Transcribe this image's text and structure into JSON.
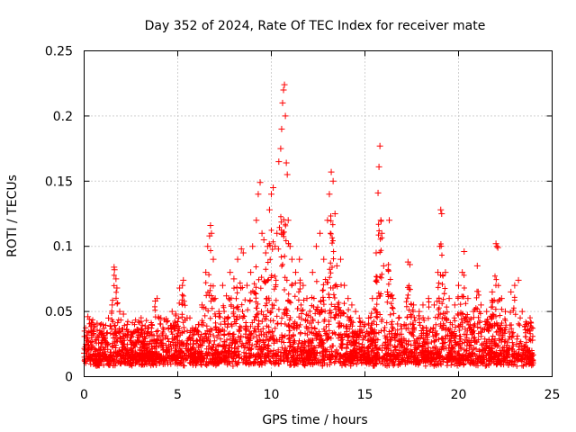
{
  "chart_data": {
    "type": "scatter",
    "title": "Day 352 of 2024, Rate Of TEC Index for receiver mate",
    "xlabel": "GPS time / hours",
    "ylabel": "ROTI / TECUs",
    "xlim": [
      0,
      25
    ],
    "ylim": [
      0,
      0.25
    ],
    "x_ticks": [
      "0",
      "5",
      "10",
      "15",
      "20",
      "25"
    ],
    "y_ticks": [
      "0",
      "0.05",
      "0.1",
      "0.15",
      "0.2",
      "0.25"
    ],
    "grid": true,
    "marker": "+",
    "color": "#ff0000",
    "series": [
      {
        "name": "ROTI",
        "points": [
          [
            0.0,
            0.018
          ],
          [
            0.2,
            0.046
          ],
          [
            0.4,
            0.035
          ],
          [
            0.6,
            0.028
          ],
          [
            0.8,
            0.032
          ],
          [
            1.0,
            0.03
          ],
          [
            1.3,
            0.045
          ],
          [
            1.5,
            0.055
          ],
          [
            1.6,
            0.084
          ],
          [
            1.62,
            0.082
          ],
          [
            1.7,
            0.075
          ],
          [
            1.75,
            0.068
          ],
          [
            1.9,
            0.05
          ],
          [
            2.1,
            0.048
          ],
          [
            2.3,
            0.04
          ],
          [
            2.5,
            0.03
          ],
          [
            2.8,
            0.025
          ],
          [
            3.0,
            0.022
          ],
          [
            3.3,
            0.024
          ],
          [
            3.6,
            0.04
          ],
          [
            3.8,
            0.058
          ],
          [
            3.9,
            0.06
          ],
          [
            4.1,
            0.045
          ],
          [
            4.4,
            0.042
          ],
          [
            4.7,
            0.05
          ],
          [
            4.9,
            0.048
          ],
          [
            5.1,
            0.068
          ],
          [
            5.25,
            0.07
          ],
          [
            5.3,
            0.074
          ],
          [
            5.5,
            0.045
          ],
          [
            5.8,
            0.032
          ],
          [
            6.1,
            0.04
          ],
          [
            6.3,
            0.055
          ],
          [
            6.5,
            0.08
          ],
          [
            6.6,
            0.1
          ],
          [
            6.7,
            0.108
          ],
          [
            6.75,
            0.116
          ],
          [
            6.8,
            0.11
          ],
          [
            6.9,
            0.09
          ],
          [
            7.0,
            0.06
          ],
          [
            7.2,
            0.05
          ],
          [
            7.4,
            0.07
          ],
          [
            7.6,
            0.062
          ],
          [
            7.8,
            0.08
          ],
          [
            8.0,
            0.075
          ],
          [
            8.2,
            0.09
          ],
          [
            8.4,
            0.098
          ],
          [
            8.5,
            0.095
          ],
          [
            8.7,
            0.07
          ],
          [
            8.9,
            0.08
          ],
          [
            9.0,
            0.1
          ],
          [
            9.2,
            0.12
          ],
          [
            9.3,
            0.14
          ],
          [
            9.4,
            0.149
          ],
          [
            9.5,
            0.11
          ],
          [
            9.6,
            0.105
          ],
          [
            9.7,
            0.095
          ],
          [
            9.8,
            0.1
          ],
          [
            9.9,
            0.128
          ],
          [
            10.0,
            0.14
          ],
          [
            10.1,
            0.145
          ],
          [
            10.2,
            0.1
          ],
          [
            10.3,
            0.11
          ],
          [
            10.4,
            0.165
          ],
          [
            10.5,
            0.175
          ],
          [
            10.55,
            0.19
          ],
          [
            10.6,
            0.21
          ],
          [
            10.65,
            0.22
          ],
          [
            10.7,
            0.224
          ],
          [
            10.75,
            0.2
          ],
          [
            10.8,
            0.164
          ],
          [
            10.85,
            0.155
          ],
          [
            10.9,
            0.12
          ],
          [
            11.0,
            0.1
          ],
          [
            11.1,
            0.09
          ],
          [
            11.3,
            0.08
          ],
          [
            11.5,
            0.09
          ],
          [
            11.7,
            0.07
          ],
          [
            11.9,
            0.06
          ],
          [
            12.2,
            0.08
          ],
          [
            12.4,
            0.1
          ],
          [
            12.6,
            0.11
          ],
          [
            12.8,
            0.09
          ],
          [
            13.0,
            0.12
          ],
          [
            13.1,
            0.14
          ],
          [
            13.2,
            0.157
          ],
          [
            13.3,
            0.15
          ],
          [
            13.4,
            0.125
          ],
          [
            13.5,
            0.085
          ],
          [
            13.7,
            0.09
          ],
          [
            13.9,
            0.07
          ],
          [
            14.1,
            0.06
          ],
          [
            14.3,
            0.055
          ],
          [
            14.5,
            0.05
          ],
          [
            14.7,
            0.045
          ],
          [
            15.0,
            0.04
          ],
          [
            15.2,
            0.045
          ],
          [
            15.4,
            0.06
          ],
          [
            15.6,
            0.095
          ],
          [
            15.7,
            0.141
          ],
          [
            15.75,
            0.161
          ],
          [
            15.8,
            0.177
          ],
          [
            15.85,
            0.12
          ],
          [
            15.9,
            0.11
          ],
          [
            16.0,
            0.085
          ],
          [
            16.2,
            0.065
          ],
          [
            16.3,
            0.12
          ],
          [
            16.5,
            0.06
          ],
          [
            16.8,
            0.045
          ],
          [
            17.1,
            0.04
          ],
          [
            17.3,
            0.088
          ],
          [
            17.4,
            0.086
          ],
          [
            17.6,
            0.055
          ],
          [
            17.9,
            0.05
          ],
          [
            18.1,
            0.055
          ],
          [
            18.4,
            0.06
          ],
          [
            18.7,
            0.055
          ],
          [
            18.9,
            0.08
          ],
          [
            19.0,
            0.1
          ],
          [
            19.05,
            0.128
          ],
          [
            19.1,
            0.125
          ],
          [
            19.3,
            0.08
          ],
          [
            19.5,
            0.06
          ],
          [
            19.8,
            0.055
          ],
          [
            20.0,
            0.07
          ],
          [
            20.2,
            0.08
          ],
          [
            20.3,
            0.096
          ],
          [
            20.5,
            0.06
          ],
          [
            20.8,
            0.05
          ],
          [
            21.0,
            0.085
          ],
          [
            21.2,
            0.055
          ],
          [
            21.5,
            0.05
          ],
          [
            21.8,
            0.065
          ],
          [
            22.0,
            0.102
          ],
          [
            22.05,
            0.1
          ],
          [
            22.1,
            0.099
          ],
          [
            22.3,
            0.06
          ],
          [
            22.5,
            0.05
          ],
          [
            22.8,
            0.065
          ],
          [
            23.0,
            0.07
          ],
          [
            23.2,
            0.074
          ],
          [
            23.4,
            0.05
          ],
          [
            23.6,
            0.04
          ],
          [
            23.8,
            0.035
          ],
          [
            23.95,
            0.028
          ]
        ]
      }
    ]
  }
}
